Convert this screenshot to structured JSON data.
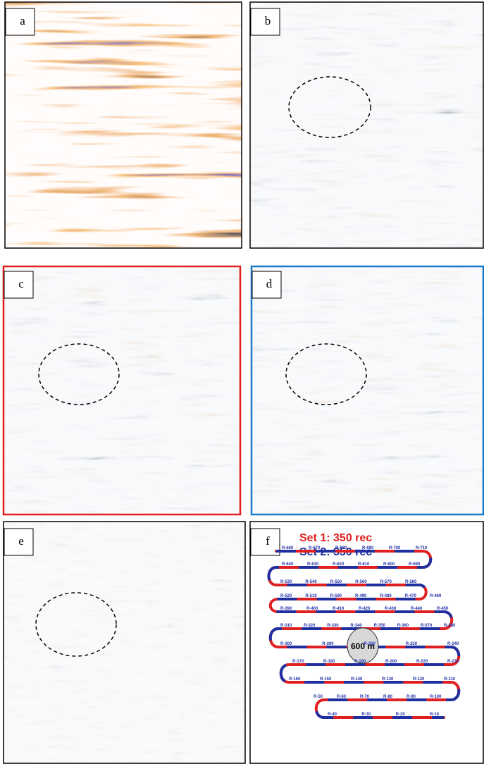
{
  "panels": [
    {
      "label": "a"
    },
    {
      "label": "b"
    },
    {
      "label": "c"
    },
    {
      "label": "d"
    },
    {
      "label": "e"
    },
    {
      "label": "f"
    }
  ],
  "survey": {
    "legend": [
      {
        "name": "Set 1: 350 rec",
        "color": "#e02020"
      },
      {
        "name": "Set 2: 350 rec",
        "color": "#1f2fa0"
      }
    ],
    "scale": "600 m",
    "receivers": [
      [
        "R-660",
        "R-670",
        "R-680",
        "R-690",
        "R-700",
        "R-710"
      ],
      [
        "R-640",
        "R-630",
        "R-620",
        "R-610",
        "R-600",
        "R-590"
      ],
      [
        "R-530",
        "R-540",
        "R-550",
        "R-560",
        "R-570",
        "R-580"
      ],
      [
        "R-520",
        "R-510",
        "R-500",
        "R-490",
        "R-480",
        "R-470",
        "R-460"
      ],
      [
        "R-390",
        "R-400",
        "R-410",
        "R-420",
        "R-430",
        "R-440",
        "R-450"
      ],
      [
        "R-310",
        "R-320",
        "R-330",
        "R-340",
        "R-350",
        "R-360",
        "R-370",
        "R-380"
      ],
      [
        "R-300",
        "R-290",
        "R-260",
        "R-250",
        "R-240"
      ],
      [
        "R-170",
        "R-180",
        "R-190",
        "R-200",
        "R-220",
        "R-230"
      ],
      [
        "R-160",
        "R-150",
        "R-140",
        "R-130",
        "R-120",
        "R-110"
      ],
      [
        "R-50",
        "R-60",
        "R-70",
        "R-80",
        "R-90",
        "R-100"
      ],
      [
        "R-40",
        "R-30",
        "R-20",
        "R-10"
      ]
    ]
  }
}
